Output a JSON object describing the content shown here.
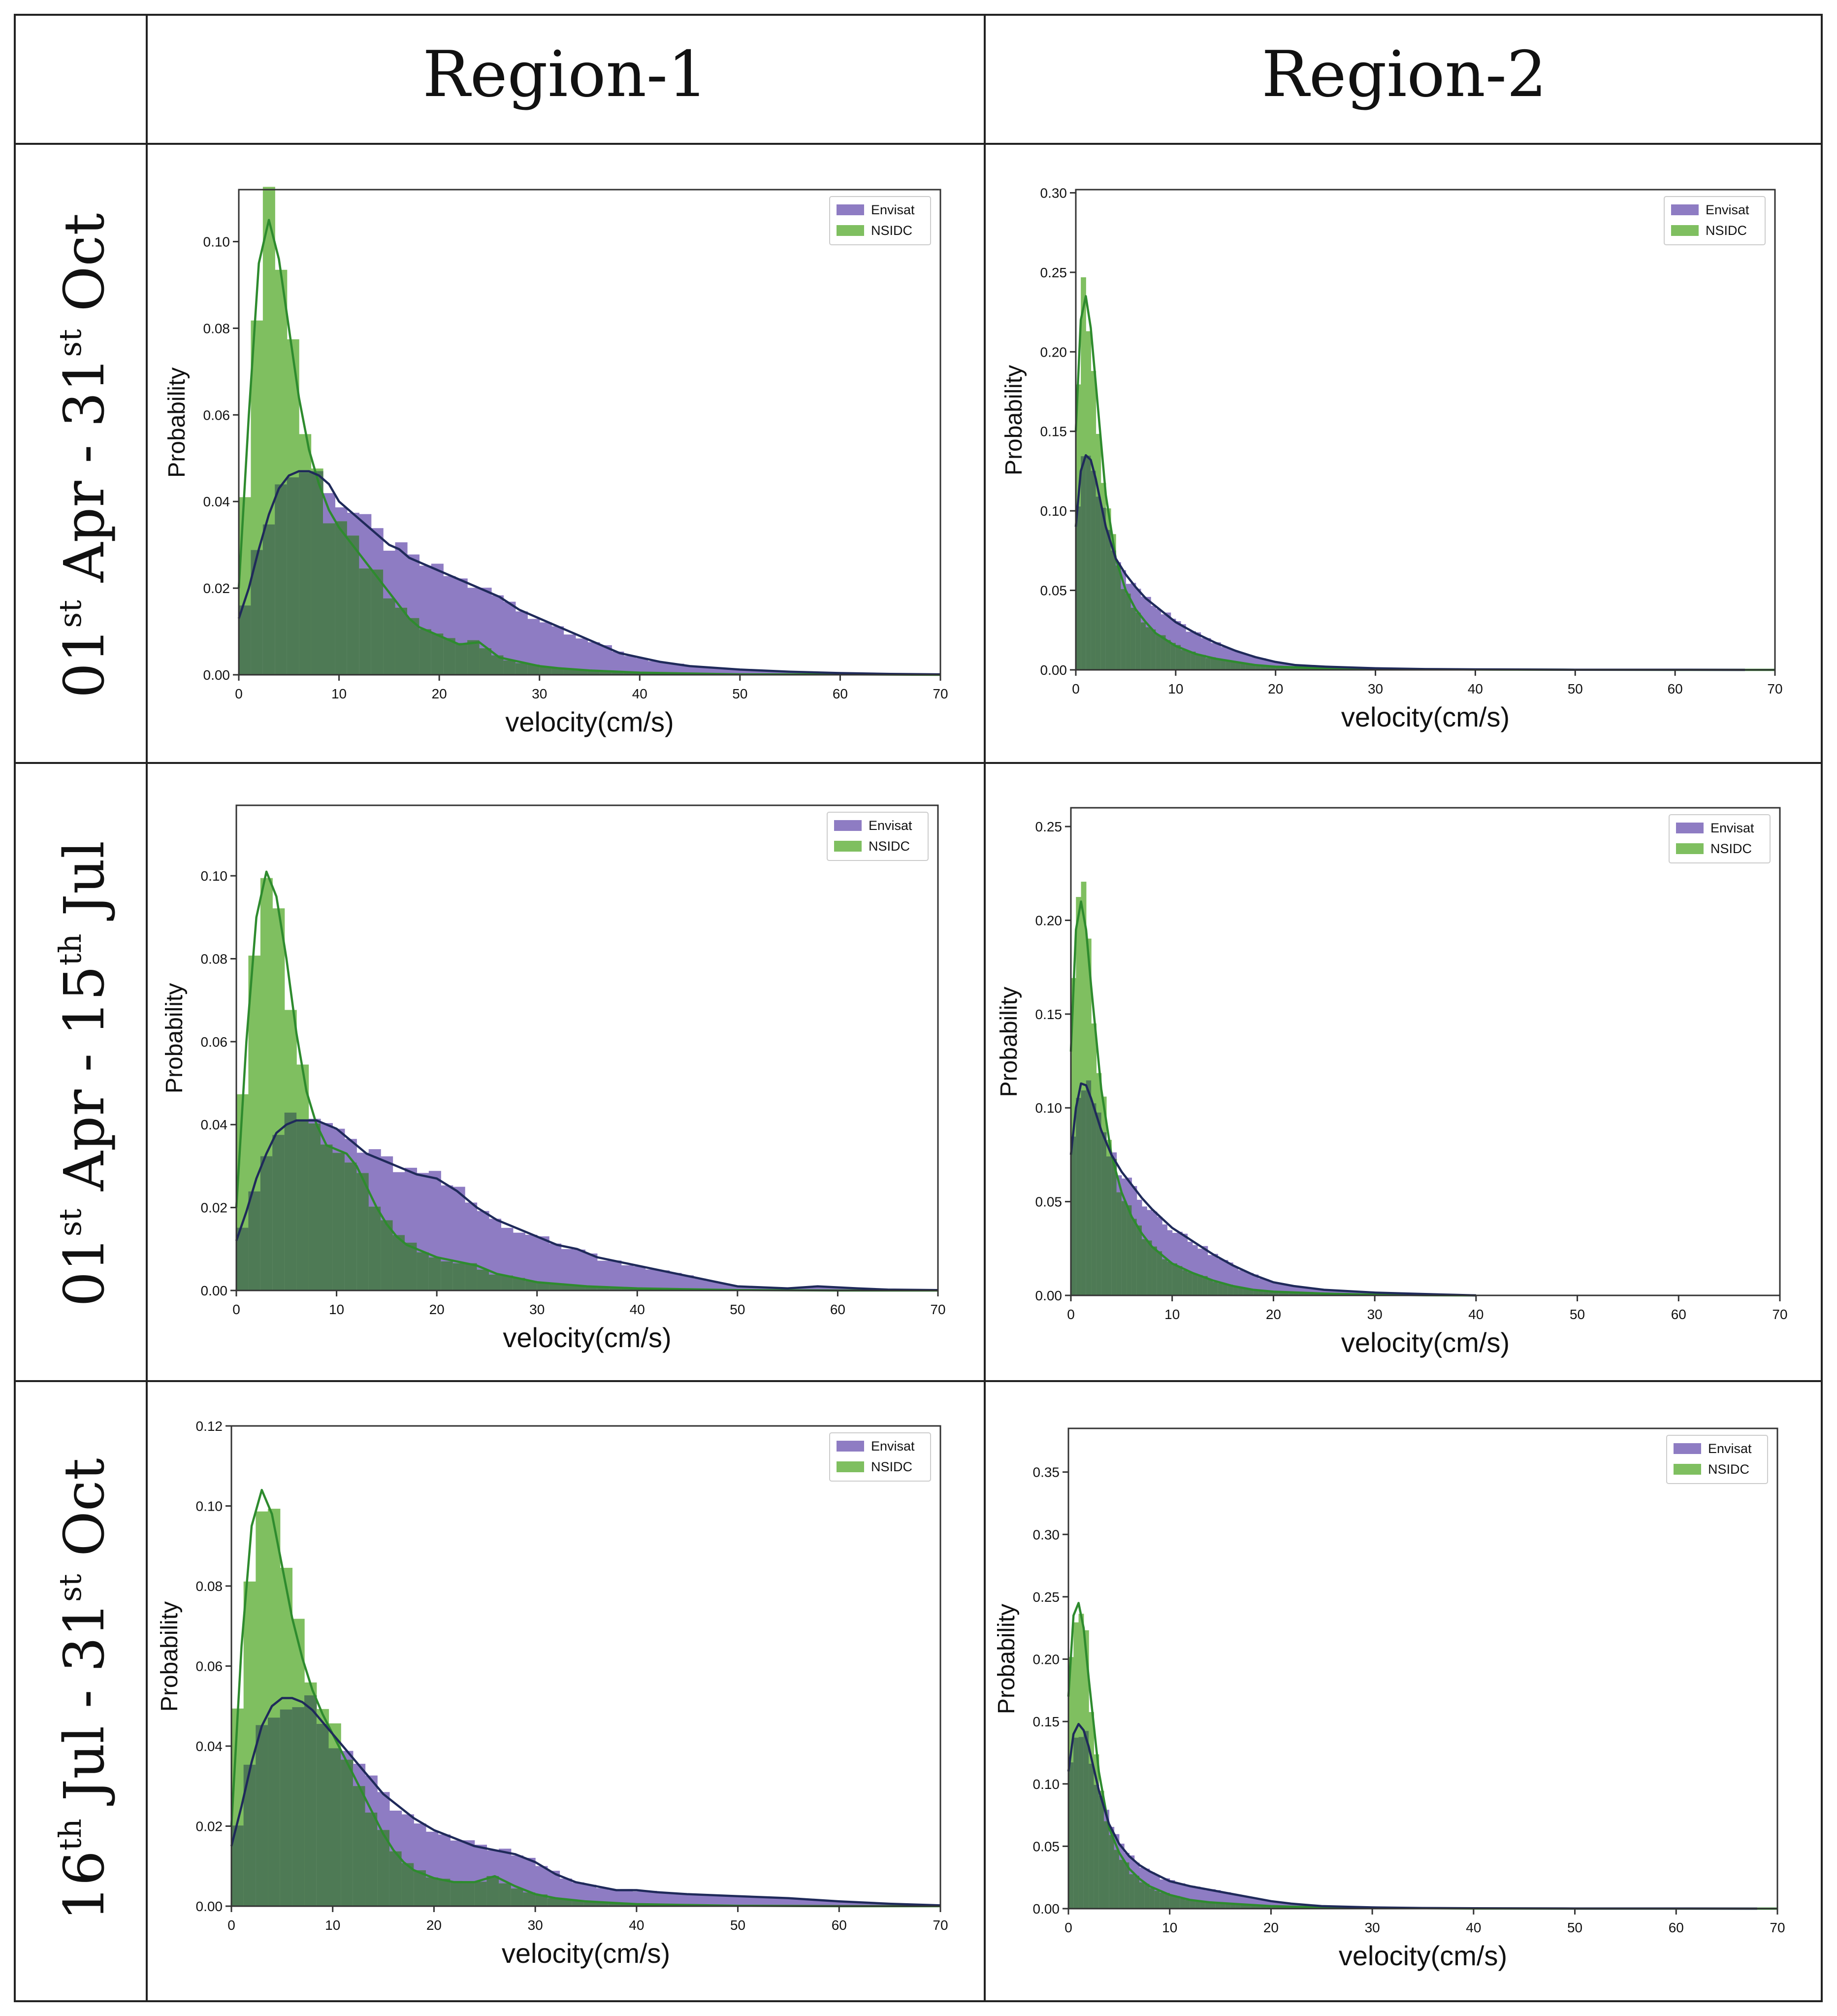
{
  "table": {
    "columns": [
      "",
      "Region-1",
      "Region-2"
    ],
    "rows": [
      {
        "label": {
          "day1": "01",
          "sup1": "st",
          "mid": " Apr - 31",
          "sup2": "st",
          "end": " Oct"
        }
      },
      {
        "label": {
          "day1": "01",
          "sup1": "st",
          "mid": " Apr - 15",
          "sup2": "th",
          "end": " Jul"
        }
      },
      {
        "label": {
          "day1": "16",
          "sup1": "th",
          "mid": " Jul - 31",
          "sup2": "st",
          "end": " Oct"
        }
      }
    ]
  },
  "colors": {
    "envisat_bar": "#8e7cc3",
    "nsidc_bar": "#7fbf60",
    "overlap": "#4e7a55",
    "envisat_line": "#1f2a5a",
    "nsidc_line": "#2e8b2e"
  },
  "chart_data": [
    {
      "type": "bar",
      "panel": "Region-1 / 01st Apr - 31st Oct",
      "xlabel": "velocity(cm/s)",
      "ylabel": "Probability",
      "xlim": [
        0,
        70
      ],
      "ylim": [
        0,
        0.112
      ],
      "xticks": [
        0,
        10,
        20,
        30,
        40,
        50,
        60,
        70
      ],
      "yticks": [
        0.0,
        0.02,
        0.04,
        0.06,
        0.08,
        0.1
      ],
      "ytick_labels": [
        "0.00",
        "0.02",
        "0.04",
        "0.06",
        "0.08",
        "0.10"
      ],
      "legend": [
        "Envisat",
        "NSIDC"
      ],
      "legend_position": "top-right",
      "series": [
        {
          "name": "Envisat",
          "x": [
            0,
            1,
            2,
            3,
            4,
            5,
            6,
            7,
            8,
            9,
            10,
            11,
            12,
            13,
            14,
            15,
            16,
            17,
            18,
            20,
            22,
            24,
            26,
            28,
            30,
            32,
            34,
            36,
            38,
            40,
            42,
            45,
            50,
            55,
            60,
            65,
            70
          ],
          "y": [
            0.013,
            0.02,
            0.029,
            0.037,
            0.043,
            0.046,
            0.047,
            0.047,
            0.046,
            0.044,
            0.04,
            0.038,
            0.036,
            0.034,
            0.032,
            0.03,
            0.029,
            0.027,
            0.026,
            0.024,
            0.022,
            0.02,
            0.018,
            0.015,
            0.013,
            0.011,
            0.009,
            0.007,
            0.005,
            0.004,
            0.003,
            0.002,
            0.0012,
            0.0007,
            0.0004,
            0.0002,
            0.0001
          ]
        },
        {
          "name": "NSIDC",
          "x": [
            0,
            1,
            2,
            3,
            4,
            5,
            6,
            7,
            8,
            9,
            10,
            11,
            12,
            13,
            14,
            15,
            16,
            17,
            18,
            19,
            20,
            22,
            24,
            26,
            28,
            30,
            32,
            35,
            40,
            45,
            50,
            60,
            70
          ],
          "y": [
            0.02,
            0.06,
            0.095,
            0.105,
            0.096,
            0.08,
            0.064,
            0.052,
            0.044,
            0.038,
            0.034,
            0.031,
            0.028,
            0.025,
            0.022,
            0.019,
            0.016,
            0.013,
            0.011,
            0.01,
            0.009,
            0.007,
            0.0075,
            0.004,
            0.003,
            0.002,
            0.0015,
            0.001,
            0.0005,
            0.0003,
            0.0001,
            0.0001,
            0
          ]
        }
      ]
    },
    {
      "type": "bar",
      "panel": "Region-2 / 01st Apr - 31st Oct",
      "xlabel": "velocity(cm/s)",
      "ylabel": "Probability",
      "xlim": [
        0,
        70
      ],
      "ylim": [
        0,
        0.302
      ],
      "xticks": [
        0,
        10,
        20,
        30,
        40,
        50,
        60,
        70
      ],
      "yticks": [
        0.0,
        0.05,
        0.1,
        0.15,
        0.2,
        0.25,
        0.3
      ],
      "ytick_labels": [
        "0.00",
        "0.05",
        "0.10",
        "0.15",
        "0.20",
        "0.25",
        "0.30"
      ],
      "legend": [
        "Envisat",
        "NSIDC"
      ],
      "legend_position": "top-right",
      "series": [
        {
          "name": "Envisat",
          "x": [
            0,
            0.5,
            1,
            1.5,
            2,
            3,
            4,
            5,
            6,
            7,
            8,
            9,
            10,
            12,
            14,
            16,
            18,
            20,
            22,
            25,
            30,
            35,
            40,
            50,
            60,
            67
          ],
          "y": [
            0.09,
            0.125,
            0.135,
            0.132,
            0.12,
            0.09,
            0.07,
            0.06,
            0.052,
            0.045,
            0.04,
            0.035,
            0.03,
            0.023,
            0.017,
            0.012,
            0.008,
            0.005,
            0.003,
            0.002,
            0.001,
            0.0005,
            0.0003,
            0.0001,
            0.0001,
            0
          ]
        },
        {
          "name": "NSIDC",
          "x": [
            0,
            0.5,
            1,
            1.5,
            2,
            3,
            4,
            5,
            6,
            7,
            8,
            10,
            12,
            14,
            16,
            18,
            20,
            25,
            30,
            40,
            50,
            60,
            70
          ],
          "y": [
            0.15,
            0.22,
            0.235,
            0.215,
            0.18,
            0.11,
            0.07,
            0.05,
            0.038,
            0.03,
            0.023,
            0.015,
            0.01,
            0.007,
            0.005,
            0.003,
            0.002,
            0.001,
            0.0005,
            0.0002,
            0.0001,
            0,
            0
          ]
        }
      ]
    },
    {
      "type": "bar",
      "panel": "Region-1 / 01st Apr - 15th Jul",
      "xlabel": "velocity(cm/s)",
      "ylabel": "Probability",
      "xlim": [
        0,
        70
      ],
      "ylim": [
        0,
        0.117
      ],
      "xticks": [
        0,
        10,
        20,
        30,
        40,
        50,
        60,
        70
      ],
      "yticks": [
        0.0,
        0.02,
        0.04,
        0.06,
        0.08,
        0.1
      ],
      "ytick_labels": [
        "0.00",
        "0.02",
        "0.04",
        "0.06",
        "0.08",
        "0.10"
      ],
      "legend": [
        "Envisat",
        "NSIDC"
      ],
      "legend_position": "top-right",
      "series": [
        {
          "name": "Envisat",
          "x": [
            0,
            1,
            2,
            3,
            4,
            5,
            6,
            7,
            8,
            9,
            10,
            11,
            12,
            13,
            14,
            15,
            16,
            18,
            20,
            22,
            24,
            26,
            28,
            30,
            32,
            34,
            36,
            38,
            40,
            42,
            44,
            46,
            48,
            50,
            55,
            58,
            62,
            65,
            70
          ],
          "y": [
            0.012,
            0.019,
            0.027,
            0.033,
            0.038,
            0.04,
            0.041,
            0.041,
            0.041,
            0.04,
            0.039,
            0.037,
            0.035,
            0.033,
            0.032,
            0.031,
            0.03,
            0.028,
            0.027,
            0.024,
            0.02,
            0.017,
            0.015,
            0.013,
            0.011,
            0.01,
            0.008,
            0.007,
            0.006,
            0.005,
            0.004,
            0.003,
            0.002,
            0.001,
            0.0005,
            0.001,
            0.0005,
            0.0002,
            0.0001
          ]
        },
        {
          "name": "NSIDC",
          "x": [
            0,
            1,
            2,
            3,
            4,
            5,
            6,
            7,
            8,
            9,
            10,
            11,
            12,
            13,
            14,
            15,
            16,
            17,
            18,
            20,
            22,
            24,
            26,
            28,
            30,
            35,
            40,
            45,
            50,
            60,
            70
          ],
          "y": [
            0.02,
            0.06,
            0.09,
            0.101,
            0.095,
            0.08,
            0.062,
            0.048,
            0.04,
            0.035,
            0.034,
            0.033,
            0.03,
            0.025,
            0.02,
            0.016,
            0.013,
            0.011,
            0.01,
            0.008,
            0.007,
            0.006,
            0.004,
            0.003,
            0.002,
            0.001,
            0.0005,
            0.0003,
            0.0001,
            0,
            0
          ]
        }
      ]
    },
    {
      "type": "bar",
      "panel": "Region-2 / 01st Apr - 15th Jul",
      "xlabel": "velocity(cm/s)",
      "ylabel": "Probability",
      "xlim": [
        0,
        70
      ],
      "ylim": [
        0,
        0.26
      ],
      "xticks": [
        0,
        10,
        20,
        30,
        40,
        50,
        60,
        70
      ],
      "yticks": [
        0.0,
        0.05,
        0.1,
        0.15,
        0.2,
        0.25
      ],
      "ytick_labels": [
        "0.00",
        "0.05",
        "0.10",
        "0.15",
        "0.20",
        "0.25"
      ],
      "legend": [
        "Envisat",
        "NSIDC"
      ],
      "legend_position": "top-right",
      "series": [
        {
          "name": "Envisat",
          "x": [
            0,
            0.5,
            1,
            1.5,
            2,
            3,
            4,
            5,
            6,
            7,
            8,
            9,
            10,
            12,
            14,
            16,
            18,
            20,
            22,
            25,
            30,
            35,
            38,
            40
          ],
          "y": [
            0.075,
            0.1,
            0.113,
            0.112,
            0.105,
            0.088,
            0.075,
            0.066,
            0.059,
            0.052,
            0.046,
            0.041,
            0.036,
            0.029,
            0.022,
            0.016,
            0.011,
            0.007,
            0.005,
            0.003,
            0.0015,
            0.0007,
            0.0003,
            0
          ]
        },
        {
          "name": "NSIDC",
          "x": [
            0,
            0.5,
            1,
            1.5,
            2,
            3,
            4,
            5,
            6,
            7,
            8,
            10,
            12,
            14,
            16,
            18,
            20,
            25,
            30,
            35,
            40
          ],
          "y": [
            0.13,
            0.195,
            0.21,
            0.195,
            0.165,
            0.11,
            0.075,
            0.055,
            0.042,
            0.033,
            0.026,
            0.017,
            0.012,
            0.008,
            0.005,
            0.003,
            0.002,
            0.001,
            0.0004,
            0.0001,
            0
          ]
        }
      ]
    },
    {
      "type": "bar",
      "panel": "Region-1 / 16th Jul - 31st Oct",
      "xlabel": "velocity(cm/s)",
      "ylabel": "Probability",
      "xlim": [
        0,
        70
      ],
      "ylim": [
        0,
        0.12
      ],
      "xticks": [
        0,
        10,
        20,
        30,
        40,
        50,
        60,
        70
      ],
      "yticks": [
        0.0,
        0.02,
        0.04,
        0.06,
        0.08,
        0.1,
        0.12
      ],
      "ytick_labels": [
        "0.00",
        "0.02",
        "0.04",
        "0.06",
        "0.08",
        "0.10",
        "0.12"
      ],
      "legend": [
        "Envisat",
        "NSIDC"
      ],
      "legend_position": "top-right",
      "series": [
        {
          "name": "Envisat",
          "x": [
            0,
            1,
            2,
            3,
            4,
            5,
            6,
            7,
            8,
            9,
            10,
            11,
            12,
            13,
            14,
            15,
            16,
            17,
            18,
            20,
            22,
            24,
            26,
            28,
            30,
            32,
            34,
            36,
            38,
            40,
            42,
            45,
            50,
            55,
            60,
            65,
            70
          ],
          "y": [
            0.015,
            0.025,
            0.036,
            0.045,
            0.05,
            0.052,
            0.052,
            0.051,
            0.049,
            0.046,
            0.043,
            0.04,
            0.037,
            0.034,
            0.031,
            0.028,
            0.026,
            0.024,
            0.022,
            0.019,
            0.017,
            0.015,
            0.014,
            0.013,
            0.011,
            0.008,
            0.006,
            0.005,
            0.004,
            0.004,
            0.0035,
            0.003,
            0.0025,
            0.002,
            0.0012,
            0.0006,
            0.0002
          ]
        },
        {
          "name": "NSIDC",
          "x": [
            0,
            1,
            2,
            3,
            4,
            5,
            6,
            7,
            8,
            9,
            10,
            11,
            12,
            13,
            14,
            15,
            16,
            17,
            18,
            20,
            22,
            24,
            26,
            28,
            30,
            32,
            35,
            40,
            45,
            50,
            60,
            70
          ],
          "y": [
            0.02,
            0.065,
            0.095,
            0.104,
            0.098,
            0.085,
            0.072,
            0.062,
            0.054,
            0.048,
            0.043,
            0.038,
            0.033,
            0.028,
            0.023,
            0.018,
            0.014,
            0.011,
            0.009,
            0.007,
            0.006,
            0.006,
            0.0075,
            0.005,
            0.003,
            0.002,
            0.0012,
            0.0005,
            0.0003,
            0.0001,
            0,
            0
          ]
        }
      ]
    },
    {
      "type": "bar",
      "panel": "Region-2 / 16th Jul - 31st Oct",
      "xlabel": "velocity(cm/s)",
      "ylabel": "Probability",
      "xlim": [
        0,
        70
      ],
      "ylim": [
        0,
        0.385
      ],
      "xticks": [
        0,
        10,
        20,
        30,
        40,
        50,
        60,
        70
      ],
      "yticks": [
        0.0,
        0.05,
        0.1,
        0.15,
        0.2,
        0.25,
        0.3,
        0.35
      ],
      "ytick_labels": [
        "0.00",
        "0.05",
        "0.10",
        "0.15",
        "0.20",
        "0.25",
        "0.30",
        "0.35"
      ],
      "legend": [
        "Envisat",
        "NSIDC"
      ],
      "legend_position": "top-right",
      "series": [
        {
          "name": "Envisat",
          "x": [
            0,
            0.5,
            1,
            1.5,
            2,
            3,
            4,
            5,
            6,
            7,
            8,
            9,
            10,
            12,
            14,
            16,
            18,
            20,
            22,
            25,
            30,
            35,
            40,
            50,
            60,
            68
          ],
          "y": [
            0.11,
            0.14,
            0.148,
            0.143,
            0.13,
            0.095,
            0.068,
            0.052,
            0.042,
            0.035,
            0.03,
            0.026,
            0.022,
            0.018,
            0.015,
            0.012,
            0.009,
            0.006,
            0.004,
            0.002,
            0.001,
            0.0005,
            0.0003,
            0.0001,
            0.0001,
            0
          ]
        },
        {
          "name": "NSIDC",
          "x": [
            0,
            0.5,
            1,
            1.5,
            2,
            3,
            4,
            5,
            6,
            7,
            8,
            10,
            12,
            14,
            16,
            18,
            20,
            25,
            30,
            40,
            50,
            60,
            70
          ],
          "y": [
            0.17,
            0.235,
            0.245,
            0.225,
            0.185,
            0.11,
            0.065,
            0.045,
            0.032,
            0.024,
            0.018,
            0.011,
            0.007,
            0.005,
            0.004,
            0.003,
            0.002,
            0.001,
            0.0005,
            0.0001,
            0,
            0,
            0
          ]
        }
      ]
    }
  ]
}
